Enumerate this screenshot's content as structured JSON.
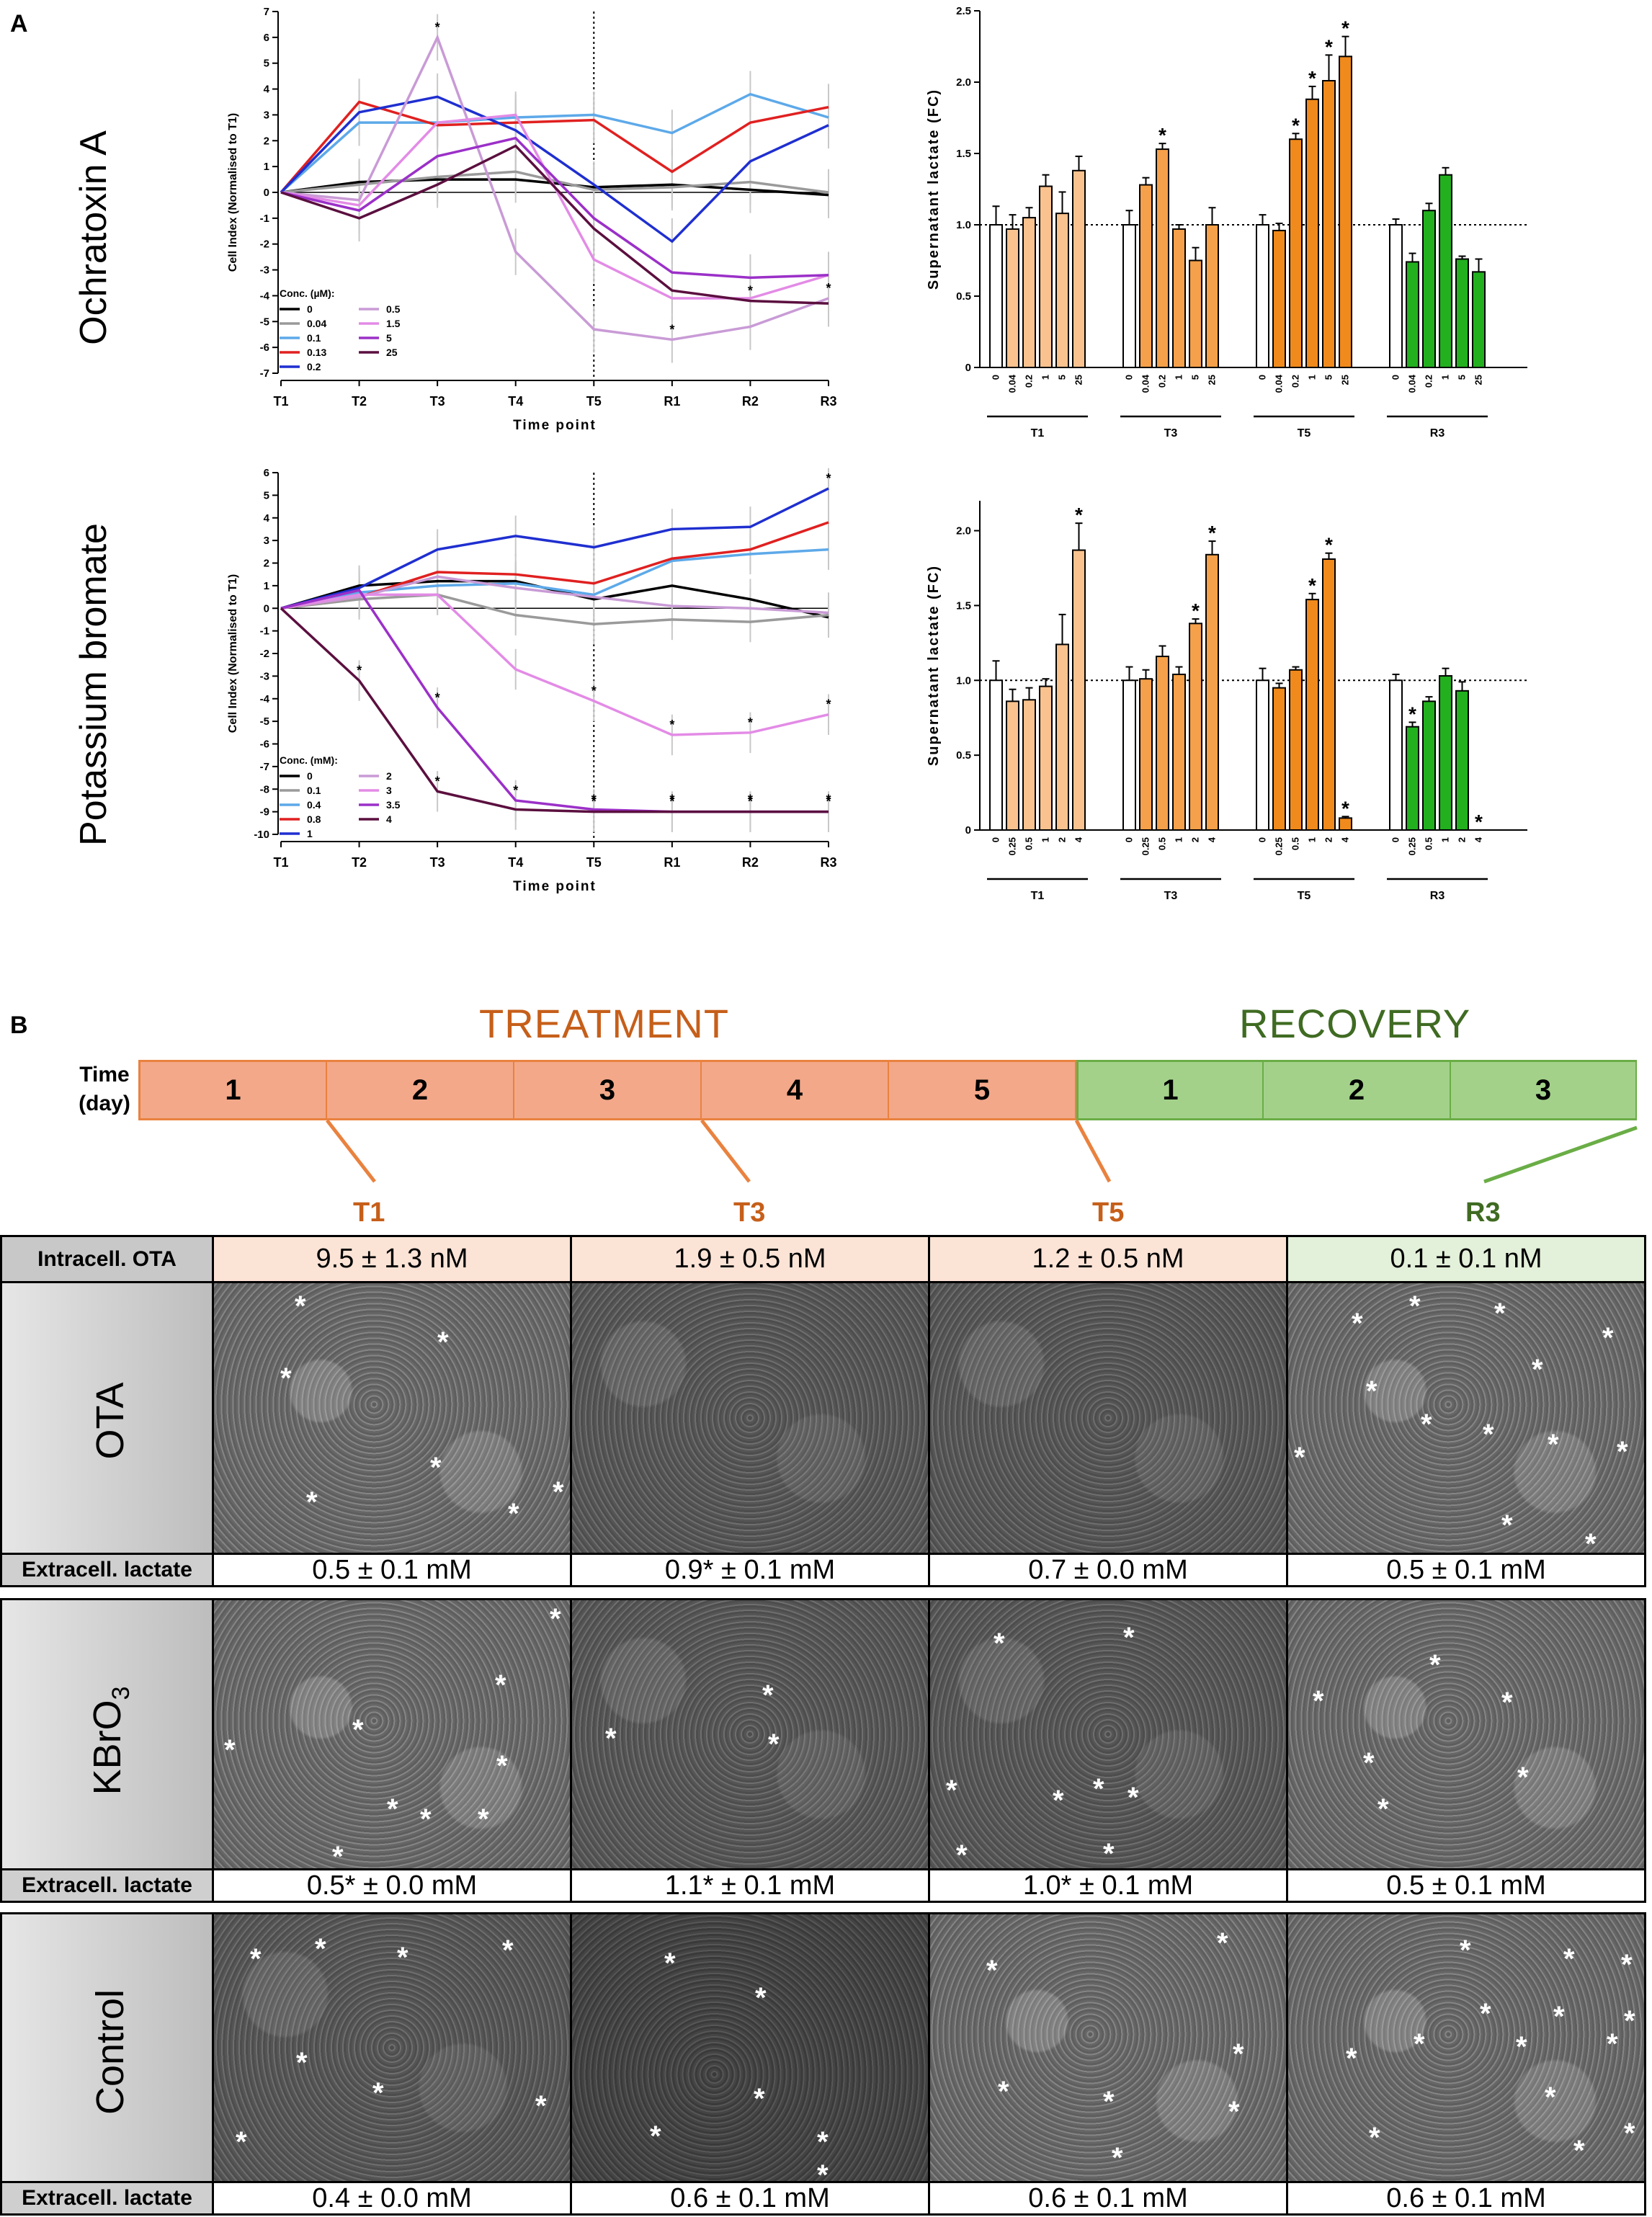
{
  "panel_labels": {
    "a": "A",
    "b": "B"
  },
  "row_labels": {
    "ota": "Ochratoxin A",
    "kbro3": "Potassium bromate"
  },
  "colors": {
    "c0": "#000000",
    "c004": "#9a9a9a",
    "c01": "#5da9e9",
    "c013": "#e02020",
    "c02": "#1f2fd0",
    "c05": "#c99bd6",
    "c15": "#e38be6",
    "c5": "#9b30c8",
    "c25": "#5b0f3f",
    "kb0": "#000000",
    "kb01": "#9a9a9a",
    "kb04": "#5da9e9",
    "kb08": "#e02020",
    "kb1": "#1f2fd0",
    "kb2": "#c99bd6",
    "kb3": "#e38be6",
    "kb35": "#9b30c8",
    "kb4": "#5b0f3f",
    "bar_light": "#f9c28e",
    "bar_mid": "#f5a04a",
    "bar_dark": "#f08a1c",
    "bar_green": "#22b01f",
    "treat_text": "#c65f1a",
    "rec_text": "#3f6b22"
  },
  "chart_data": [
    {
      "id": "ota-line",
      "type": "line",
      "title": "",
      "xlabel": "Time point",
      "ylabel": "Cell Index (Normalised to T1)",
      "categories": [
        "T1",
        "T2",
        "T3",
        "T4",
        "T5",
        "R1",
        "R2",
        "R3"
      ],
      "ylim": [
        -7,
        7
      ],
      "yticks": [
        "7",
        "6",
        "5",
        "4",
        "3",
        "2",
        "1",
        "0",
        "-1",
        "-2",
        "-3",
        "-4",
        "-5",
        "-6",
        "-7"
      ],
      "legend_title": "Conc. (µM):",
      "series": [
        {
          "name": "0",
          "color_key": "c0",
          "values": [
            0,
            0.4,
            0.5,
            0.5,
            0.2,
            0.3,
            0.1,
            -0.1
          ]
        },
        {
          "name": "0.04",
          "color_key": "c004",
          "values": [
            0,
            0.3,
            0.6,
            0.8,
            0.1,
            0.2,
            0.4,
            0.0
          ]
        },
        {
          "name": "0.1",
          "color_key": "c01",
          "values": [
            0,
            2.7,
            2.7,
            2.9,
            3.0,
            2.3,
            3.8,
            2.9
          ]
        },
        {
          "name": "0.13",
          "color_key": "c013",
          "values": [
            0,
            3.5,
            2.6,
            2.7,
            2.8,
            0.8,
            2.7,
            3.3
          ]
        },
        {
          "name": "0.2",
          "color_key": "c02",
          "values": [
            0,
            3.1,
            3.7,
            2.4,
            0.3,
            -1.9,
            1.2,
            2.6
          ]
        },
        {
          "name": "0.5",
          "color_key": "c05",
          "values": [
            0,
            -0.3,
            6.0,
            -2.3,
            -5.3,
            -5.7,
            -5.2,
            -4.1
          ]
        },
        {
          "name": "1.5",
          "color_key": "c15",
          "values": [
            0,
            -0.5,
            2.7,
            3.0,
            -2.6,
            -4.1,
            -4.1,
            -3.2
          ]
        },
        {
          "name": "5",
          "color_key": "c5",
          "values": [
            0,
            -0.7,
            1.4,
            2.1,
            -1.0,
            -3.1,
            -3.3,
            -3.2
          ]
        },
        {
          "name": "25",
          "color_key": "c25",
          "values": [
            0,
            -1.0,
            0.3,
            1.8,
            -1.4,
            -3.8,
            -4.2,
            -4.3
          ]
        }
      ],
      "stars": [
        {
          "x": "T3",
          "label": "*"
        },
        {
          "x": "R2",
          "label": "*"
        },
        {
          "x": "R3",
          "label": "*"
        }
      ]
    },
    {
      "id": "ota-bar",
      "type": "bar",
      "ylabel": "Supernatant lactate (FC)",
      "ylim": [
        0,
        2.5
      ],
      "yticks": [
        "2.5",
        "2.0",
        "1.5",
        "1.0",
        "0.5",
        "0"
      ],
      "groups": [
        {
          "name": "T1",
          "categories": [
            "0",
            "0.04",
            "0.2",
            "1",
            "5",
            "25"
          ],
          "values": [
            1.0,
            0.97,
            1.05,
            1.27,
            1.08,
            1.38
          ],
          "errors": [
            0.13,
            0.1,
            0.07,
            0.08,
            0.15,
            0.1
          ],
          "color_key": "bar_light",
          "stars": [
            false,
            false,
            false,
            false,
            false,
            false
          ]
        },
        {
          "name": "T3",
          "categories": [
            "0",
            "0.04",
            "0.2",
            "1",
            "5",
            "25"
          ],
          "values": [
            1.0,
            1.28,
            1.53,
            0.97,
            0.75,
            1.0
          ],
          "errors": [
            0.1,
            0.05,
            0.04,
            0.03,
            0.09,
            0.12
          ],
          "color_key": "bar_mid",
          "stars": [
            false,
            false,
            true,
            false,
            false,
            false
          ]
        },
        {
          "name": "T5",
          "categories": [
            "0",
            "0.04",
            "0.2",
            "1",
            "5",
            "25"
          ],
          "values": [
            1.0,
            0.96,
            1.6,
            1.88,
            2.01,
            2.18
          ],
          "errors": [
            0.07,
            0.05,
            0.04,
            0.09,
            0.18,
            0.14
          ],
          "color_key": "bar_dark",
          "stars": [
            false,
            false,
            true,
            true,
            true,
            true
          ]
        },
        {
          "name": "R3",
          "categories": [
            "0",
            "0.04",
            "0.2",
            "1",
            "5",
            "25"
          ],
          "values": [
            1.0,
            0.74,
            1.1,
            1.35,
            0.76,
            0.67
          ],
          "errors": [
            0.04,
            0.06,
            0.05,
            0.05,
            0.02,
            0.09
          ],
          "color_key": "bar_green",
          "stars": [
            false,
            false,
            false,
            false,
            false,
            false
          ],
          "first_white": true
        }
      ]
    },
    {
      "id": "kbro3-line",
      "type": "line",
      "xlabel": "Time point",
      "ylabel": "Cell Index (Normalised to T1)",
      "categories": [
        "T1",
        "T2",
        "T3",
        "T4",
        "T5",
        "R1",
        "R2",
        "R3"
      ],
      "ylim": [
        -10,
        6
      ],
      "yticks": [
        "6",
        "5",
        "4",
        "3",
        "2",
        "1",
        "0",
        "-1",
        "-2",
        "-3",
        "-4",
        "-5",
        "-6",
        "-7",
        "-8",
        "-9",
        "-10"
      ],
      "legend_title": "Conc. (mM):",
      "series": [
        {
          "name": "0",
          "color_key": "kb0",
          "values": [
            0,
            1.0,
            1.2,
            1.2,
            0.4,
            1.0,
            0.4,
            -0.4
          ]
        },
        {
          "name": "0.1",
          "color_key": "kb01",
          "values": [
            0,
            0.4,
            0.6,
            -0.3,
            -0.7,
            -0.5,
            -0.6,
            -0.3
          ]
        },
        {
          "name": "0.4",
          "color_key": "kb04",
          "values": [
            0,
            0.7,
            1.0,
            1.1,
            0.6,
            2.1,
            2.4,
            2.6
          ]
        },
        {
          "name": "0.8",
          "color_key": "kb08",
          "values": [
            0,
            0.5,
            1.6,
            1.5,
            1.1,
            2.2,
            2.6,
            3.8
          ]
        },
        {
          "name": "1",
          "color_key": "kb1",
          "values": [
            0,
            0.9,
            2.6,
            3.2,
            2.7,
            3.5,
            3.6,
            5.3
          ]
        },
        {
          "name": "2",
          "color_key": "kb2",
          "values": [
            0,
            0.5,
            1.4,
            0.9,
            0.5,
            0.1,
            0.0,
            -0.2
          ]
        },
        {
          "name": "3",
          "color_key": "kb3",
          "values": [
            0,
            0.6,
            0.6,
            -2.7,
            -4.1,
            -5.6,
            -5.5,
            -4.7
          ]
        },
        {
          "name": "3.5",
          "color_key": "kb35",
          "values": [
            0,
            0.8,
            -4.4,
            -8.5,
            -8.9,
            -9.0,
            -9.0,
            -9.0
          ]
        },
        {
          "name": "4",
          "color_key": "kb4",
          "values": [
            0,
            -3.2,
            -8.1,
            -8.9,
            -9.0,
            -9.0,
            -9.0,
            -9.0
          ]
        }
      ]
    },
    {
      "id": "kbro3-bar",
      "type": "bar",
      "ylabel": "Supernatant lactate (FC)",
      "ylim": [
        0,
        2.2
      ],
      "yticks": [
        "2.0",
        "1.5",
        "1.0",
        "0.5",
        "0"
      ],
      "groups": [
        {
          "name": "T1",
          "categories": [
            "0",
            "0.25",
            "0.5",
            "1",
            "2",
            "4"
          ],
          "values": [
            1.0,
            0.86,
            0.87,
            0.96,
            1.24,
            1.87
          ],
          "errors": [
            0.13,
            0.08,
            0.08,
            0.05,
            0.2,
            0.18
          ],
          "color_key": "bar_light",
          "stars": [
            false,
            false,
            false,
            false,
            false,
            true
          ]
        },
        {
          "name": "T3",
          "categories": [
            "0",
            "0.25",
            "0.5",
            "1",
            "2",
            "4"
          ],
          "values": [
            1.0,
            1.01,
            1.16,
            1.04,
            1.38,
            1.84
          ],
          "errors": [
            0.09,
            0.06,
            0.07,
            0.05,
            0.03,
            0.09
          ],
          "color_key": "bar_mid",
          "stars": [
            false,
            false,
            false,
            false,
            true,
            true
          ]
        },
        {
          "name": "T5",
          "categories": [
            "0",
            "0.25",
            "0.5",
            "1",
            "2",
            "4"
          ],
          "values": [
            1.0,
            0.95,
            1.07,
            1.54,
            1.81,
            0.08
          ],
          "errors": [
            0.08,
            0.03,
            0.02,
            0.04,
            0.04,
            0.01
          ],
          "color_key": "bar_dark",
          "stars": [
            false,
            false,
            false,
            true,
            true,
            true
          ]
        },
        {
          "name": "R3",
          "categories": [
            "0",
            "0.25",
            "0.5",
            "1",
            "2",
            "4"
          ],
          "values": [
            1.0,
            0.69,
            0.86,
            1.03,
            0.93,
            0.0
          ],
          "errors": [
            0.04,
            0.03,
            0.03,
            0.05,
            0.06,
            0.0
          ],
          "color_key": "bar_green",
          "stars": [
            false,
            true,
            false,
            false,
            false,
            true
          ],
          "first_white": true
        }
      ]
    }
  ],
  "timeline": {
    "treatment_title": "TREATMENT",
    "recovery_title": "RECOVERY",
    "time_label": "Time",
    "day_label": "(day)",
    "treatment_days": [
      "1",
      "2",
      "3",
      "4",
      "5"
    ],
    "recovery_days": [
      "1",
      "2",
      "3"
    ],
    "timepoints": [
      "T1",
      "T3",
      "T5",
      "R3"
    ]
  },
  "table": {
    "header_label": "Intracell. OTA",
    "ota_values": [
      "9.5 ± 1.3 nM",
      "1.9 ± 0.5 nM",
      "1.2 ± 0.5 nM",
      "0.1 ± 0.1 nM"
    ],
    "lactate_label": "Extracell. lactate",
    "rows": [
      {
        "name": "OTA",
        "lactate": [
          "0.5 ± 0.1 mM",
          "0.9* ± 0.1 mM",
          "0.7 ± 0.0 mM",
          "0.5 ± 0.1 mM"
        ]
      },
      {
        "name": "KBrO",
        "name_sub": "3",
        "lactate": [
          "0.5* ± 0.0 mM",
          "1.1* ± 0.1 mM",
          "1.0* ± 0.1 mM",
          "0.5 ± 0.1 mM"
        ]
      },
      {
        "name": "Control",
        "lactate": [
          "0.4 ± 0.0 mM",
          "0.6 ± 0.1 mM",
          "0.6 ± 0.1 mM",
          "0.6 ± 0.1 mM"
        ]
      }
    ],
    "star_mark": "*"
  }
}
